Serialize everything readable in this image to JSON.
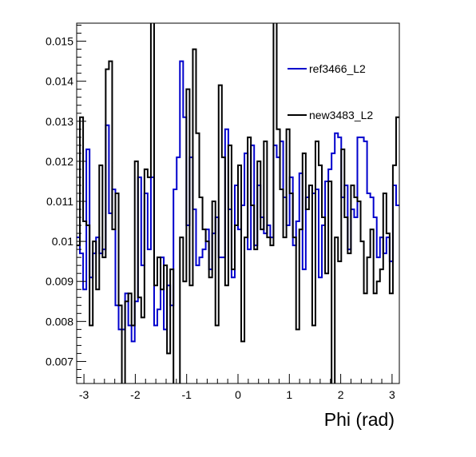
{
  "chart_data": {
    "type": "line",
    "title": "",
    "xlabel": "Phi (rad)",
    "ylabel": "",
    "xlim": [
      -3.1416,
      3.1416
    ],
    "ylim": [
      0.00645,
      0.01545
    ],
    "grid": false,
    "legend_placement": "top-right",
    "x_ticks": [
      {
        "value": -3,
        "label": "-3"
      },
      {
        "value": -2,
        "label": "-2"
      },
      {
        "value": -1,
        "label": "-1"
      },
      {
        "value": 0,
        "label": "0"
      },
      {
        "value": 1,
        "label": "1"
      },
      {
        "value": 2,
        "label": "2"
      },
      {
        "value": 3,
        "label": "3"
      }
    ],
    "y_ticks": [
      {
        "value": 0.007,
        "label": "0.007"
      },
      {
        "value": 0.008,
        "label": "0.008"
      },
      {
        "value": 0.009,
        "label": "0.009"
      },
      {
        "value": 0.01,
        "label": "0.01"
      },
      {
        "value": 0.011,
        "label": "0.011"
      },
      {
        "value": 0.012,
        "label": "0.012"
      },
      {
        "value": 0.013,
        "label": "0.013"
      },
      {
        "value": 0.014,
        "label": "0.014"
      },
      {
        "value": 0.015,
        "label": "0.015"
      }
    ],
    "bins": 100,
    "series": [
      {
        "name": "ref3466_L2",
        "color": "#0000cc",
        "values": [
          0.0101,
          0.0097,
          0.0088,
          0.0123,
          0.0091,
          0.0097,
          0.0101,
          0.0097,
          0.0098,
          0.0129,
          0.0107,
          0.0113,
          0.0084,
          0.0078,
          0.0078,
          0.0087,
          0.0079,
          0.0075,
          0.0085,
          0.0116,
          0.0094,
          0.0112,
          0.0098,
          0.0116,
          0.0079,
          0.0083,
          0.0096,
          0.0078,
          0.0089,
          0.0084,
          0.0113,
          0.0121,
          0.0145,
          0.0131,
          0.0104,
          0.0121,
          0.0108,
          0.0094,
          0.0096,
          0.0098,
          0.0103,
          0.0093,
          0.0102,
          0.0106,
          0.0096,
          0.0096,
          0.0128,
          0.0108,
          0.0091,
          0.0114,
          0.0103,
          0.0109,
          0.0122,
          0.0098,
          0.0124,
          0.0099,
          0.0114,
          0.0106,
          0.0102,
          0.0104,
          0.0101,
          0.0124,
          0.0121,
          0.0125,
          0.0111,
          0.0104,
          0.0116,
          0.0099,
          0.0105,
          0.0117,
          0.0093,
          0.0111,
          0.0114,
          0.0112,
          0.0113,
          0.0091,
          0.0104,
          0.0115,
          0.0118,
          0.0122,
          0.0127,
          0.0126,
          0.0111,
          0.0114,
          0.0098,
          0.0108,
          0.0106,
          0.0126,
          0.0126,
          0.0125,
          0.0112,
          0.0111,
          0.0106,
          0.0096,
          0.0101,
          0.0097,
          0.0101,
          0.0095,
          0.0114,
          0.0109
        ]
      },
      {
        "name": "new3483_L2",
        "color": "#000000",
        "values": [
          0.0099,
          0.0131,
          0.0105,
          0.0104,
          0.0079,
          0.01,
          0.0088,
          0.0119,
          0.0096,
          0.0143,
          0.0145,
          0.0103,
          0.0112,
          0.0084,
          0.0064,
          0.0085,
          0.0087,
          0.0079,
          0.012,
          0.0086,
          0.0081,
          0.0118,
          0.0116,
          0.0155,
          0.0089,
          0.0096,
          0.0088,
          0.0094,
          0.0072,
          0.0093,
          0.0064,
          0.0064,
          0.0101,
          0.009,
          0.0138,
          0.0089,
          0.0148,
          0.0127,
          0.0111,
          0.0103,
          0.01,
          0.0091,
          0.011,
          0.0079,
          0.0139,
          0.0121,
          0.0089,
          0.0124,
          0.0093,
          0.0104,
          0.0119,
          0.0075,
          0.0101,
          0.0126,
          0.0109,
          0.0098,
          0.012,
          0.0103,
          0.0125,
          0.0101,
          0.0099,
          0.0155,
          0.0128,
          0.0113,
          0.0101,
          0.0128,
          0.0112,
          0.0101,
          0.0078,
          0.0103,
          0.0122,
          0.0108,
          0.0114,
          0.0079,
          0.0125,
          0.0119,
          0.0106,
          0.0092,
          0.0115,
          0.0059,
          0.0101,
          0.0095,
          0.0123,
          0.0106,
          0.0097,
          0.0114,
          0.0111,
          0.011,
          0.01,
          0.0087,
          0.0096,
          0.0103,
          0.0087,
          0.009,
          0.0093,
          0.0112,
          0.0102,
          0.0087,
          0.0119,
          0.0131
        ]
      }
    ]
  }
}
